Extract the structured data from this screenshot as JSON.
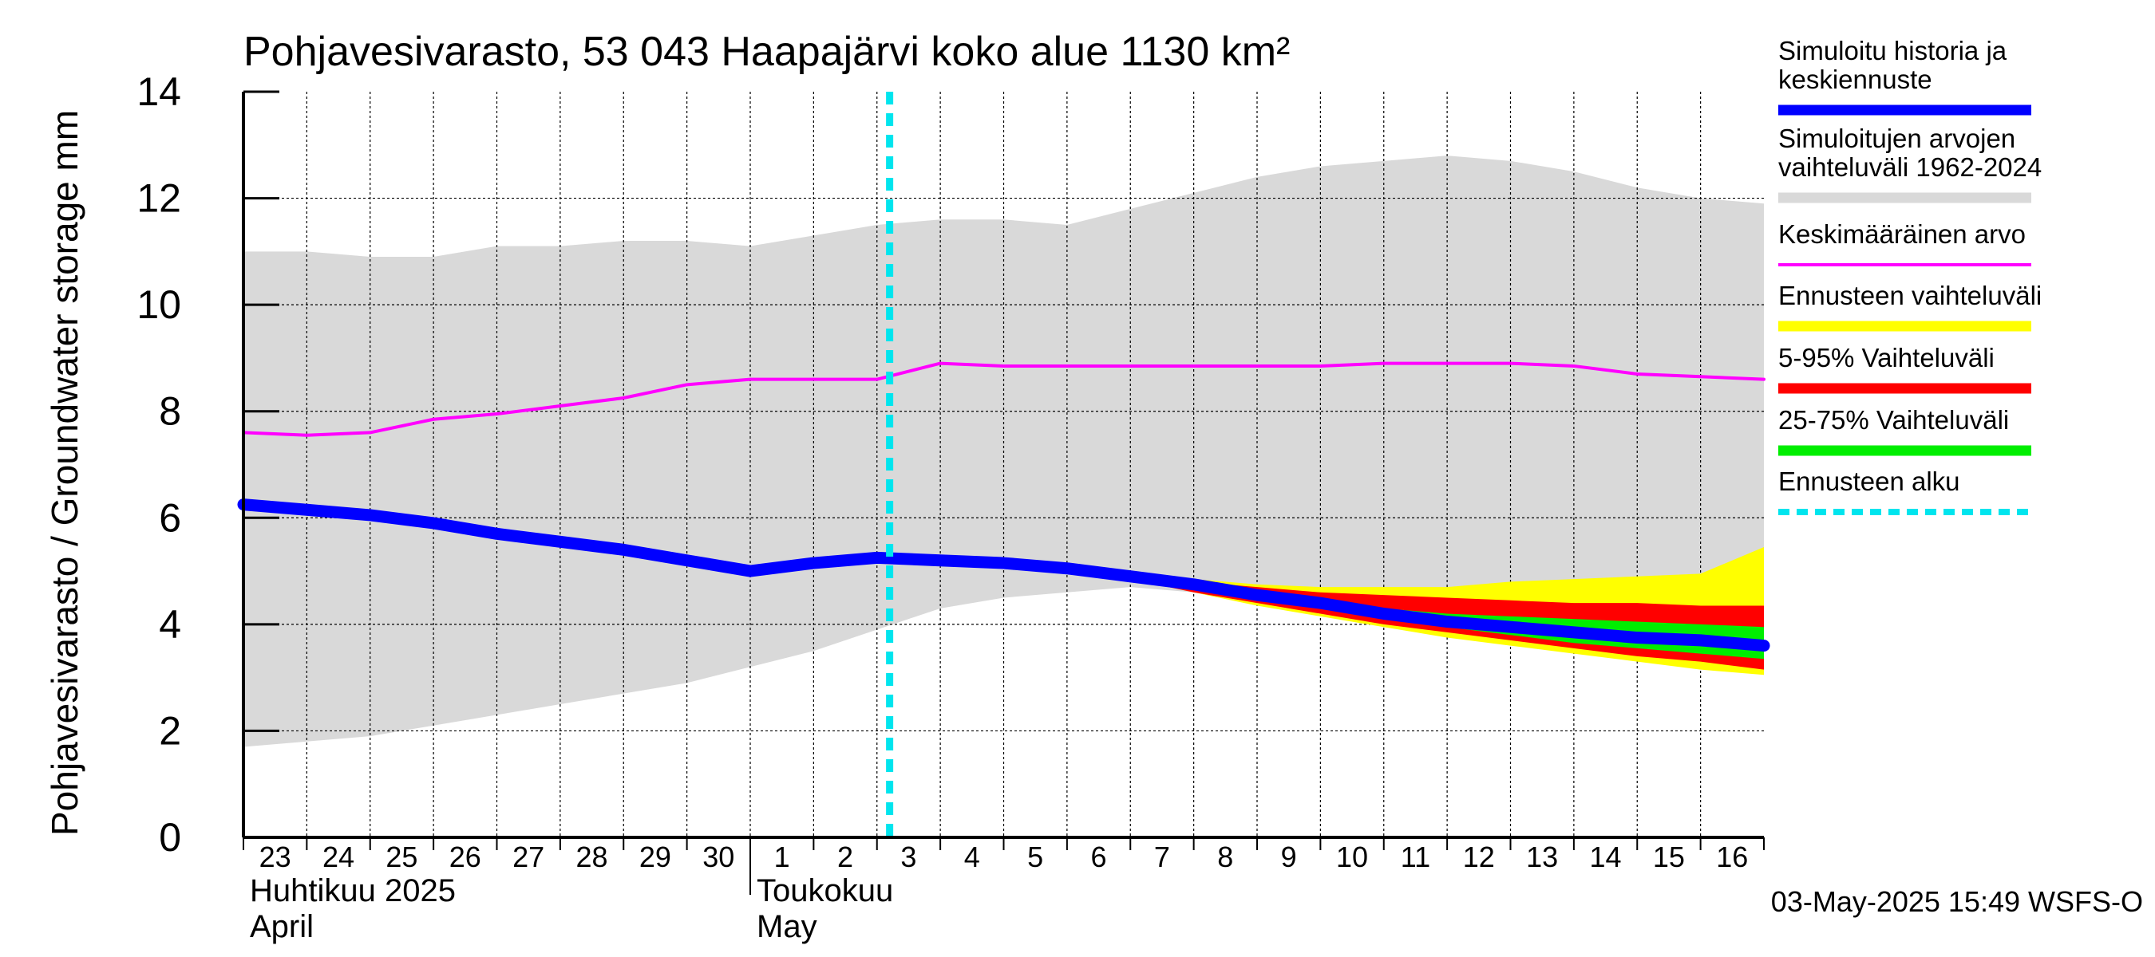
{
  "chart_data": {
    "type": "area",
    "title": "Pohjavesivarasto, 53 043 Haapajärvi koko alue 1130 km²",
    "ylabel": "Pohjavesivarasto / Groundwater storage   mm",
    "ylim": [
      0,
      14
    ],
    "yticks": [
      "0",
      "2",
      "4",
      "6",
      "8",
      "10",
      "12",
      "14"
    ],
    "grid": true,
    "legend_position": "right",
    "x_tick_labels": [
      "23",
      "24",
      "25",
      "26",
      "27",
      "28",
      "29",
      "30",
      "1",
      "2",
      "3",
      "4",
      "5",
      "6",
      "7",
      "8",
      "9",
      "10",
      "11",
      "12",
      "13",
      "14",
      "15",
      "16"
    ],
    "month_labels": [
      {
        "fi": "Huhtikuu  2025",
        "en": "April"
      },
      {
        "fi": "Toukokuu",
        "en": "May"
      }
    ],
    "forecast_start_day": 10.2,
    "colors": {
      "history": "#0000ff",
      "range": "#d9d9d9",
      "mean": "#ff00ff",
      "forecast_range": "#ffff00",
      "p5_95": "#ff0000",
      "p25_75": "#00ee00",
      "forecast_start": "#00e5ee"
    },
    "series": {
      "range_upper": [
        [
          0,
          11.0
        ],
        [
          1,
          11.0
        ],
        [
          2,
          10.9
        ],
        [
          3,
          10.9
        ],
        [
          4,
          11.1
        ],
        [
          5,
          11.1
        ],
        [
          6,
          11.2
        ],
        [
          7,
          11.2
        ],
        [
          8,
          11.1
        ],
        [
          9,
          11.3
        ],
        [
          10,
          11.5
        ],
        [
          11,
          11.6
        ],
        [
          12,
          11.6
        ],
        [
          13,
          11.5
        ],
        [
          14,
          11.8
        ],
        [
          15,
          12.1
        ],
        [
          16,
          12.4
        ],
        [
          17,
          12.6
        ],
        [
          18,
          12.7
        ],
        [
          19,
          12.8
        ],
        [
          20,
          12.7
        ],
        [
          21,
          12.5
        ],
        [
          22,
          12.2
        ],
        [
          23,
          12.0
        ],
        [
          24,
          11.9
        ]
      ],
      "range_lower": [
        [
          0,
          1.7
        ],
        [
          1,
          1.8
        ],
        [
          2,
          1.9
        ],
        [
          3,
          2.1
        ],
        [
          4,
          2.3
        ],
        [
          5,
          2.5
        ],
        [
          6,
          2.7
        ],
        [
          7,
          2.9
        ],
        [
          8,
          3.2
        ],
        [
          9,
          3.5
        ],
        [
          10,
          3.9
        ],
        [
          11,
          4.3
        ],
        [
          12,
          4.5
        ],
        [
          13,
          4.6
        ],
        [
          14,
          4.7
        ],
        [
          15,
          4.6
        ],
        [
          16,
          4.5
        ],
        [
          17,
          4.5
        ],
        [
          18,
          4.5
        ],
        [
          19,
          4.5
        ],
        [
          20,
          4.5
        ],
        [
          21,
          4.5
        ],
        [
          22,
          4.5
        ],
        [
          23,
          4.5
        ],
        [
          24,
          4.5
        ]
      ],
      "mean": [
        [
          0,
          7.6
        ],
        [
          1,
          7.55
        ],
        [
          2,
          7.6
        ],
        [
          3,
          7.85
        ],
        [
          4,
          7.95
        ],
        [
          5,
          8.1
        ],
        [
          6,
          8.25
        ],
        [
          7,
          8.5
        ],
        [
          8,
          8.6
        ],
        [
          9,
          8.6
        ],
        [
          10,
          8.6
        ],
        [
          11,
          8.9
        ],
        [
          12,
          8.85
        ],
        [
          13,
          8.85
        ],
        [
          14,
          8.85
        ],
        [
          15,
          8.85
        ],
        [
          16,
          8.85
        ],
        [
          17,
          8.85
        ],
        [
          18,
          8.9
        ],
        [
          19,
          8.9
        ],
        [
          20,
          8.9
        ],
        [
          21,
          8.85
        ],
        [
          22,
          8.7
        ],
        [
          23,
          8.65
        ],
        [
          24,
          8.6
        ]
      ],
      "history": [
        [
          0,
          6.25
        ],
        [
          1,
          6.15
        ],
        [
          2,
          6.05
        ],
        [
          3,
          5.9
        ],
        [
          4,
          5.7
        ],
        [
          5,
          5.55
        ],
        [
          6,
          5.4
        ],
        [
          7,
          5.2
        ],
        [
          8,
          5.0
        ],
        [
          9,
          5.15
        ],
        [
          10,
          5.25
        ],
        [
          11,
          5.2
        ],
        [
          12,
          5.15
        ],
        [
          13,
          5.05
        ],
        [
          14,
          4.9
        ],
        [
          15,
          4.75
        ],
        [
          16,
          4.55
        ],
        [
          17,
          4.4
        ],
        [
          18,
          4.2
        ],
        [
          19,
          4.05
        ],
        [
          20,
          3.95
        ],
        [
          21,
          3.85
        ],
        [
          22,
          3.75
        ],
        [
          23,
          3.7
        ],
        [
          24,
          3.6
        ]
      ],
      "forecast_range_upper": [
        [
          13,
          5.05
        ],
        [
          14,
          4.95
        ],
        [
          15,
          4.85
        ],
        [
          16,
          4.75
        ],
        [
          17,
          4.7
        ],
        [
          18,
          4.7
        ],
        [
          19,
          4.7
        ],
        [
          20,
          4.8
        ],
        [
          21,
          4.85
        ],
        [
          22,
          4.9
        ],
        [
          23,
          4.95
        ],
        [
          24,
          5.45
        ]
      ],
      "forecast_range_lower": [
        [
          13,
          5.05
        ],
        [
          14,
          4.85
        ],
        [
          15,
          4.6
        ],
        [
          16,
          4.35
        ],
        [
          17,
          4.15
        ],
        [
          18,
          3.95
        ],
        [
          19,
          3.75
        ],
        [
          20,
          3.6
        ],
        [
          21,
          3.45
        ],
        [
          22,
          3.3
        ],
        [
          23,
          3.15
        ],
        [
          24,
          3.05
        ]
      ],
      "p5_95_upper": [
        [
          13,
          5.05
        ],
        [
          14,
          4.95
        ],
        [
          15,
          4.8
        ],
        [
          16,
          4.7
        ],
        [
          17,
          4.6
        ],
        [
          18,
          4.55
        ],
        [
          19,
          4.5
        ],
        [
          20,
          4.45
        ],
        [
          21,
          4.4
        ],
        [
          22,
          4.4
        ],
        [
          23,
          4.35
        ],
        [
          24,
          4.35
        ]
      ],
      "p5_95_lower": [
        [
          13,
          5.05
        ],
        [
          14,
          4.85
        ],
        [
          15,
          4.6
        ],
        [
          16,
          4.4
        ],
        [
          17,
          4.2
        ],
        [
          18,
          4.0
        ],
        [
          19,
          3.85
        ],
        [
          20,
          3.7
        ],
        [
          21,
          3.55
        ],
        [
          22,
          3.4
        ],
        [
          23,
          3.3
        ],
        [
          24,
          3.15
        ]
      ],
      "p25_75_upper": [
        [
          13,
          5.05
        ],
        [
          14,
          4.9
        ],
        [
          15,
          4.75
        ],
        [
          16,
          4.6
        ],
        [
          17,
          4.45
        ],
        [
          18,
          4.3
        ],
        [
          19,
          4.2
        ],
        [
          20,
          4.15
        ],
        [
          21,
          4.1
        ],
        [
          22,
          4.05
        ],
        [
          23,
          4.0
        ],
        [
          24,
          3.95
        ]
      ],
      "p25_75_lower": [
        [
          13,
          5.05
        ],
        [
          14,
          4.88
        ],
        [
          15,
          4.7
        ],
        [
          16,
          4.5
        ],
        [
          17,
          4.3
        ],
        [
          18,
          4.1
        ],
        [
          19,
          3.95
        ],
        [
          20,
          3.8
        ],
        [
          21,
          3.65
        ],
        [
          22,
          3.55
        ],
        [
          23,
          3.45
        ],
        [
          24,
          3.35
        ]
      ]
    },
    "legend": [
      {
        "key": "history",
        "lines": [
          "Simuloitu historia ja",
          "keskiennuste"
        ],
        "style": "thick"
      },
      {
        "key": "range",
        "lines": [
          "Simuloitujen arvojen",
          "vaihteluväli 1962-2024"
        ],
        "style": "thick"
      },
      {
        "key": "mean",
        "lines": [
          "Keskimääräinen arvo"
        ],
        "style": "thin"
      },
      {
        "key": "forecast_range",
        "lines": [
          "Ennusteen vaihteluväli"
        ],
        "style": "thick"
      },
      {
        "key": "p5_95",
        "lines": [
          "5-95% Vaihteluväli"
        ],
        "style": "thick"
      },
      {
        "key": "p25_75",
        "lines": [
          "25-75% Vaihteluväli"
        ],
        "style": "thick"
      },
      {
        "key": "forecast_start",
        "lines": [
          "Ennusteen alku"
        ],
        "style": "dashed"
      }
    ],
    "footer": "03-May-2025 15:49 WSFS-O"
  }
}
